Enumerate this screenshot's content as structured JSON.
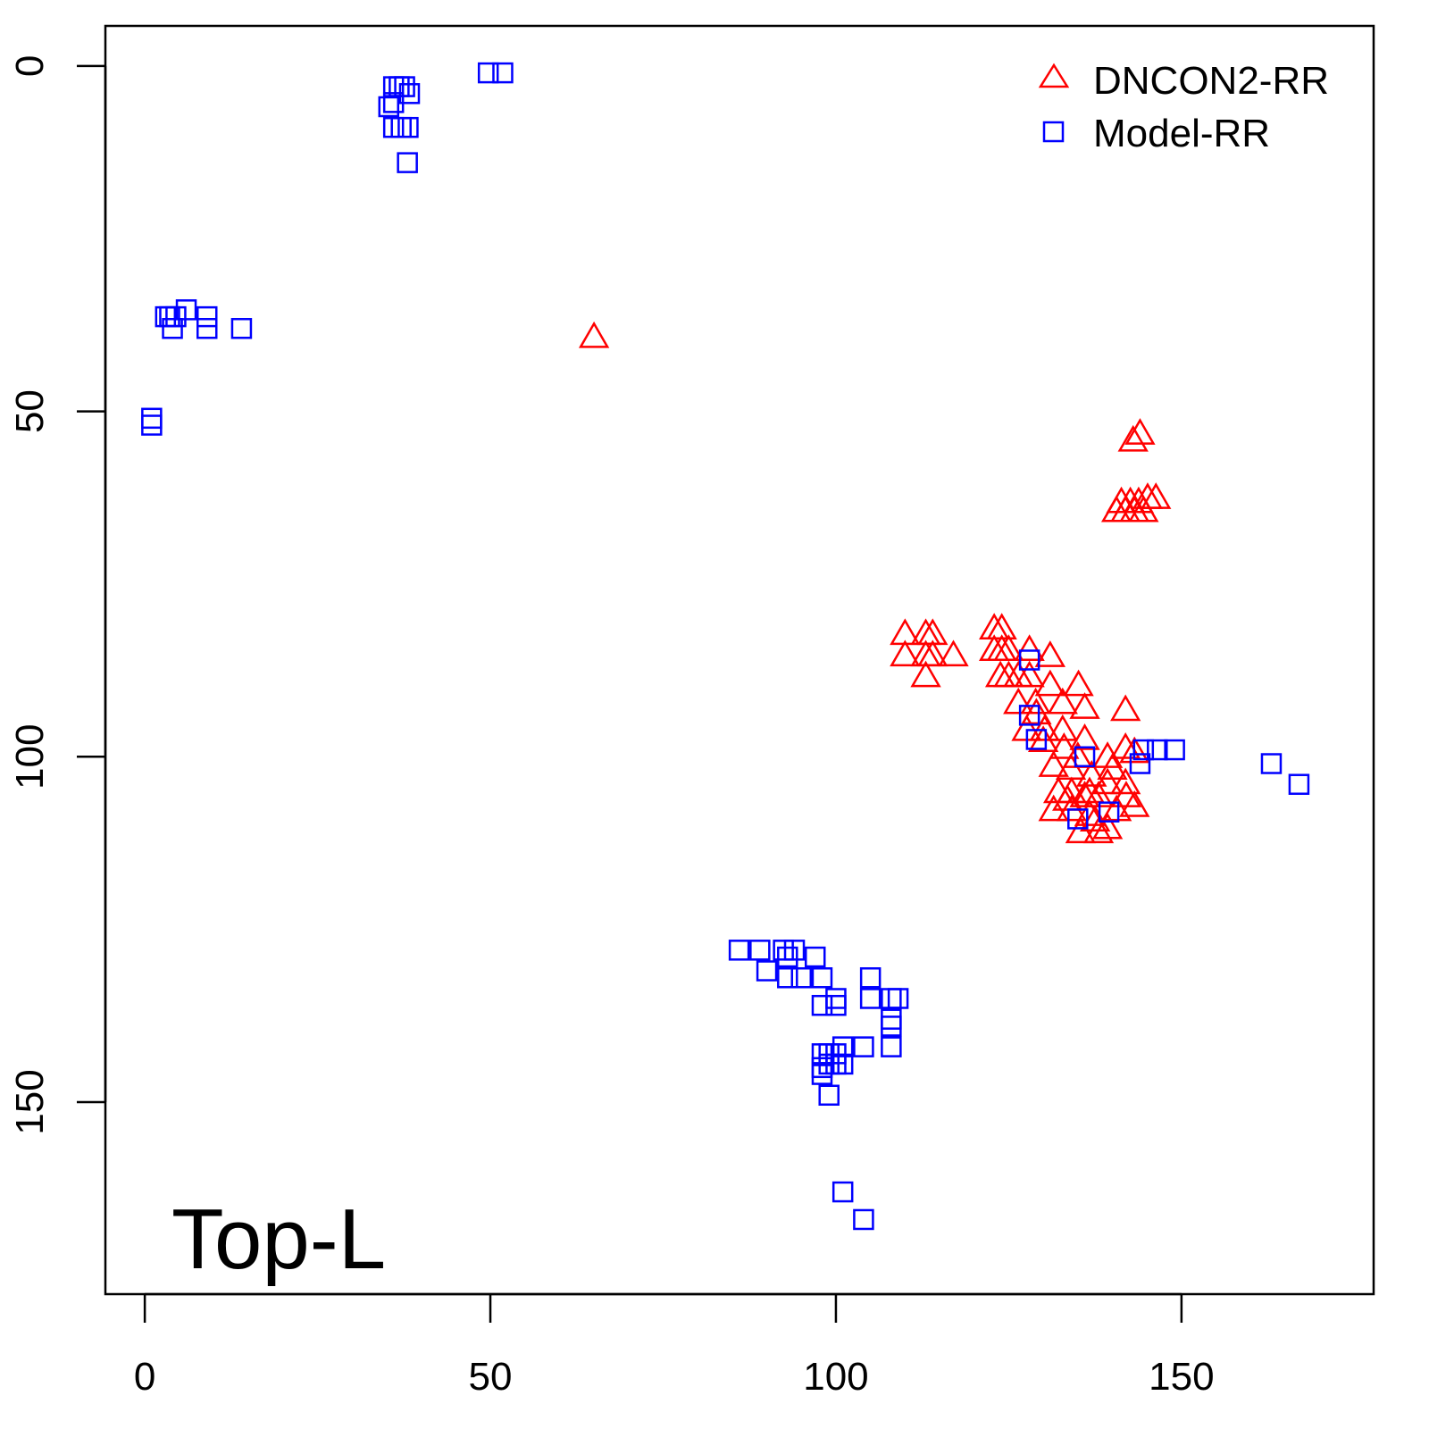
{
  "chart_data": {
    "type": "scatter",
    "title": "",
    "annotation": "Top-L",
    "xlabel": "",
    "ylabel": "",
    "xlim": [
      -5.7,
      177.8
    ],
    "ylim": [
      -5.8,
      177.8
    ],
    "y_inverted": true,
    "grid": false,
    "legend_position": "top-right",
    "xticks": [
      0,
      50,
      100,
      150
    ],
    "yticks": [
      0,
      50,
      100,
      150
    ],
    "xtick_labels": [
      "0",
      "50",
      "100",
      "150"
    ],
    "ytick_labels": [
      "0",
      "50",
      "100",
      "150"
    ],
    "series": [
      {
        "name": "DNCON2-RR",
        "marker": "triangle",
        "color": "#ff0000",
        "points": [
          [
            65,
            39.5
          ],
          [
            144,
            53.5
          ],
          [
            143,
            54.5
          ],
          [
            140.6,
            64.7
          ],
          [
            141.9,
            64.7
          ],
          [
            143.2,
            64.7
          ],
          [
            144.5,
            64.7
          ],
          [
            141.3,
            63.4
          ],
          [
            142.6,
            63.4
          ],
          [
            143.8,
            63.4
          ],
          [
            145.1,
            62.8
          ],
          [
            146.3,
            62.8
          ],
          [
            110,
            82.5
          ],
          [
            110,
            85.6
          ],
          [
            113,
            82.5
          ],
          [
            114,
            82.5
          ],
          [
            113,
            85.6
          ],
          [
            113,
            88.6
          ],
          [
            114,
            85.6
          ],
          [
            117,
            85.6
          ],
          [
            122.9,
            81.7
          ],
          [
            124,
            81.7
          ],
          [
            122.9,
            84.8
          ],
          [
            124,
            84.8
          ],
          [
            125,
            84.8
          ],
          [
            123.8,
            88.6
          ],
          [
            125,
            88.6
          ],
          [
            126.4,
            88.6
          ],
          [
            128,
            84.8
          ],
          [
            128,
            88.6
          ],
          [
            131,
            85.7
          ],
          [
            126.4,
            92.5
          ],
          [
            128.9,
            92.5
          ],
          [
            131,
            89.9
          ],
          [
            132.8,
            92.5
          ],
          [
            135.1,
            89.9
          ],
          [
            136,
            93.2
          ],
          [
            127.6,
            96.4
          ],
          [
            130.2,
            96.4
          ],
          [
            132.8,
            96.4
          ],
          [
            136,
            97.7
          ],
          [
            141.9,
            93.5
          ],
          [
            139.3,
            100.3
          ],
          [
            141.9,
            99
          ],
          [
            143.2,
            99.6
          ],
          [
            131.5,
            101.6
          ],
          [
            132.2,
            105.4
          ],
          [
            134.1,
            105.4
          ],
          [
            136.7,
            105.4
          ],
          [
            139.3,
            104.1
          ],
          [
            141.9,
            104.1
          ],
          [
            143.2,
            107.4
          ],
          [
            134.1,
            108
          ],
          [
            136.7,
            108.7
          ],
          [
            139.3,
            110.6
          ],
          [
            135.4,
            111.2
          ],
          [
            138,
            111.2
          ],
          [
            140.6,
            108
          ],
          [
            131.5,
            108
          ],
          [
            129,
            94
          ],
          [
            130,
            98
          ],
          [
            133,
            99
          ],
          [
            134,
            102
          ],
          [
            137,
            103
          ],
          [
            138,
            106
          ],
          [
            140,
            102
          ],
          [
            142,
            106
          ],
          [
            135,
            100.3
          ],
          [
            136,
            106
          ],
          [
            133.5,
            106.5
          ],
          [
            137.5,
            109.5
          ]
        ]
      },
      {
        "name": "Model-RR",
        "marker": "square",
        "color": "#0000ff",
        "points": [
          [
            49.7,
            1
          ],
          [
            51.8,
            1
          ],
          [
            35.3,
            5.9
          ],
          [
            36,
            3
          ],
          [
            36.8,
            3
          ],
          [
            37.6,
            3
          ],
          [
            38.3,
            4
          ],
          [
            36,
            8.9
          ],
          [
            37.1,
            8.9
          ],
          [
            38.1,
            8.9
          ],
          [
            36,
            5.3
          ],
          [
            38,
            14
          ],
          [
            3,
            36.3
          ],
          [
            4,
            38
          ],
          [
            6,
            35.3
          ],
          [
            9,
            36.3
          ],
          [
            9,
            38
          ],
          [
            14,
            38
          ],
          [
            3.6,
            36.3
          ],
          [
            4.5,
            36.3
          ],
          [
            1,
            51
          ],
          [
            1,
            52
          ],
          [
            86,
            128
          ],
          [
            89,
            128
          ],
          [
            90,
            131
          ],
          [
            92.4,
            128
          ],
          [
            93,
            129
          ],
          [
            94,
            128
          ],
          [
            93,
            132
          ],
          [
            95,
            132
          ],
          [
            97,
            129
          ],
          [
            98,
            132
          ],
          [
            98,
            136
          ],
          [
            100,
            136
          ],
          [
            100,
            135
          ],
          [
            105,
            132
          ],
          [
            105,
            135
          ],
          [
            108,
            135
          ],
          [
            109,
            135
          ],
          [
            108,
            138
          ],
          [
            108,
            139
          ],
          [
            108,
            142
          ],
          [
            104,
            142
          ],
          [
            101,
            142
          ],
          [
            98,
            143
          ],
          [
            98,
            145
          ],
          [
            98,
            146
          ],
          [
            99,
            143
          ],
          [
            99,
            144.5
          ],
          [
            100,
            143
          ],
          [
            100,
            144.5
          ],
          [
            101,
            144.5
          ],
          [
            99,
            149
          ],
          [
            101,
            163
          ],
          [
            104,
            167
          ],
          [
            163,
            101
          ],
          [
            167,
            104
          ],
          [
            149,
            99
          ],
          [
            146.5,
            99
          ],
          [
            144.5,
            99
          ],
          [
            144,
            101
          ],
          [
            128,
            86
          ],
          [
            128,
            94
          ],
          [
            129,
            97.5
          ],
          [
            136,
            100
          ],
          [
            135,
            109
          ],
          [
            139.5,
            108
          ]
        ]
      }
    ]
  }
}
